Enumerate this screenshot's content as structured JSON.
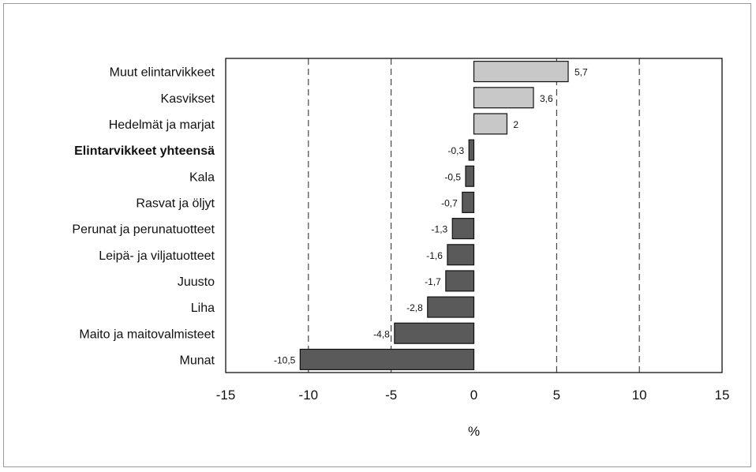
{
  "chart_data": {
    "type": "bar",
    "orientation": "horizontal",
    "title": "",
    "xlabel": "%",
    "ylabel": "",
    "xlim": [
      -15,
      15
    ],
    "xticks": [
      -15,
      -10,
      -5,
      0,
      5,
      10,
      15
    ],
    "grid": "dashed vertical at -10, -5, 5, 10",
    "legend": "none",
    "categories": [
      "Muut elintarvikkeet",
      "Kasvikset",
      "Hedelmät ja marjat",
      "Elintarvikkeet yhteensä",
      "Kala",
      "Rasvat ja öljyt",
      "Perunat ja perunatuotteet",
      "Leipä- ja viljatuotteet",
      "Juusto",
      "Liha",
      "Maito ja maitovalmisteet",
      "Munat"
    ],
    "values": [
      5.7,
      3.6,
      2,
      -0.3,
      -0.5,
      -0.7,
      -1.3,
      -1.6,
      -1.7,
      -2.8,
      -4.8,
      -10.5
    ],
    "value_labels": [
      "5,7",
      "3,6",
      "2",
      "-0,3",
      "-0,5",
      "-0,7",
      "-1,3",
      "-1,6",
      "-1,7",
      "-2,8",
      "-4,8",
      "-10,5"
    ],
    "bold_category": "Elintarvikkeet yhteensä",
    "colors": {
      "positive": "#c8c8c8",
      "negative": "#5a5a5a",
      "outline": "#111111"
    }
  }
}
